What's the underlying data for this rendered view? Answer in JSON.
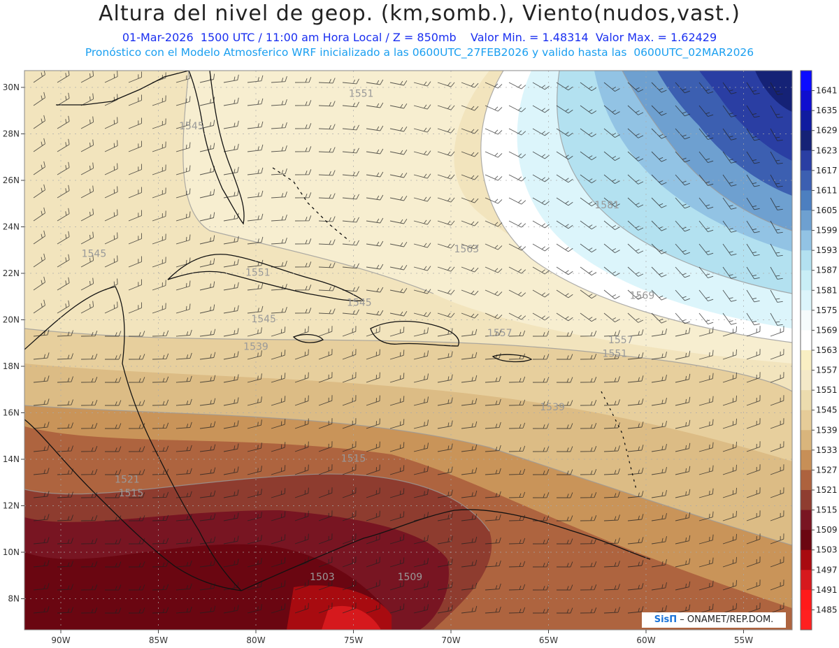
{
  "header": {
    "title": "Altura del nivel de geop. (km,somb.), Viento(nudos,vast.)",
    "subtitle1": "01-Mar-2026  1500 UTC / 11:00 am Hora Local / Z = 850mb    Valor Min. = 1.48314  Valor Max. = 1.62429",
    "subtitle2": "Pronóstico con el Modelo Atmosferico WRF inicializado a las 0600UTC_27FEB2026 y valido hasta las  0600UTC_02MAR2026"
  },
  "credit": {
    "brand": "SisΠ",
    "text": " – ONAMET/REP.DOM."
  },
  "map": {
    "lon_ticks": [
      "90W",
      "85W",
      "80W",
      "75W",
      "70W",
      "65W",
      "60W",
      "55W"
    ],
    "lat_ticks": [
      "30N",
      "28N",
      "26N",
      "24N",
      "22N",
      "20N",
      "18N",
      "16N",
      "14N",
      "12N",
      "10N",
      "8N"
    ],
    "contour_labels": [
      {
        "text": "1551",
        "lon": -74.6,
        "lat": 29.6
      },
      {
        "text": "1545",
        "lon": -83.3,
        "lat": 28.2
      },
      {
        "text": "1545",
        "lon": -88.3,
        "lat": 22.7
      },
      {
        "text": "1551",
        "lon": -79.9,
        "lat": 21.9
      },
      {
        "text": "1563",
        "lon": -69.2,
        "lat": 22.9
      },
      {
        "text": "1581",
        "lon": -62.0,
        "lat": 24.8
      },
      {
        "text": "1545",
        "lon": -74.7,
        "lat": 20.6
      },
      {
        "text": "1545",
        "lon": -79.6,
        "lat": 19.9
      },
      {
        "text": "1569",
        "lon": -60.2,
        "lat": 20.9
      },
      {
        "text": "1557",
        "lon": -61.3,
        "lat": 19.0
      },
      {
        "text": "1551",
        "lon": -61.6,
        "lat": 18.4
      },
      {
        "text": "1557",
        "lon": -67.5,
        "lat": 19.3
      },
      {
        "text": "1539",
        "lon": -80.0,
        "lat": 18.7
      },
      {
        "text": "1539",
        "lon": -64.8,
        "lat": 16.1
      },
      {
        "text": "1515",
        "lon": -75.0,
        "lat": 13.9
      },
      {
        "text": "1521",
        "lon": -86.6,
        "lat": 13.0
      },
      {
        "text": "1515",
        "lon": -86.4,
        "lat": 12.4
      },
      {
        "text": "1503",
        "lon": -76.6,
        "lat": 8.8
      },
      {
        "text": "1509",
        "lon": -72.1,
        "lat": 8.8
      }
    ]
  },
  "colorbar": {
    "levels": [
      "1641",
      "1635",
      "1629",
      "1623",
      "1617",
      "1611",
      "1605",
      "1599",
      "1593",
      "1587",
      "1581",
      "1575",
      "1569",
      "1563",
      "1557",
      "1551",
      "1545",
      "1539",
      "1533",
      "1527",
      "1521",
      "1515",
      "1509",
      "1503",
      "1497",
      "1491",
      "1485"
    ],
    "colors": [
      "#0b0bff",
      "#0f0ecf",
      "#101b9f",
      "#152276",
      "#2a3ea3",
      "#3c5fb1",
      "#4c7fc0",
      "#6ea0d0",
      "#92c3e4",
      "#b3e1f0",
      "#c9eef6",
      "#dcf5fb",
      "#f6fbfc",
      "#ffffff",
      "#f9efc3",
      "#f4e9c8",
      "#ecdcae",
      "#e6cc98",
      "#d9b57c",
      "#c78f57",
      "#ad623e",
      "#8f3d30",
      "#791522",
      "#6b0611",
      "#a80b10",
      "#d6191d",
      "#ff1a1a",
      "#ff2020"
    ]
  }
}
